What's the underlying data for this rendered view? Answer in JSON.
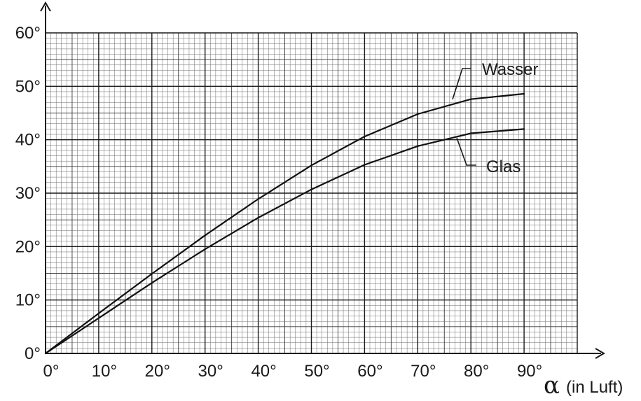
{
  "chart_data": {
    "type": "line",
    "xlabel_symbol": "α",
    "xlabel_unit": "(in Luft)",
    "ylabel": "",
    "xlim": [
      0,
      100
    ],
    "ylim": [
      0,
      60
    ],
    "grid": true,
    "x_ticks": [
      "0°",
      "10°",
      "20°",
      "30°",
      "40°",
      "50°",
      "60°",
      "70°",
      "80°",
      "90°"
    ],
    "y_ticks": [
      "0°",
      "10°",
      "20°",
      "30°",
      "40°",
      "50°",
      "60°"
    ],
    "series": [
      {
        "name": "Wasser",
        "x": [
          0,
          10,
          20,
          30,
          40,
          50,
          60,
          70,
          80,
          90
        ],
        "y": [
          0,
          7.5,
          14.9,
          22.1,
          28.9,
          35.2,
          40.6,
          44.8,
          47.6,
          48.6
        ]
      },
      {
        "name": "Glas",
        "x": [
          0,
          10,
          20,
          30,
          40,
          50,
          60,
          70,
          80,
          90
        ],
        "y": [
          0,
          6.6,
          13.2,
          19.5,
          25.4,
          30.7,
          35.3,
          38.8,
          41.2,
          42.0
        ]
      }
    ]
  }
}
